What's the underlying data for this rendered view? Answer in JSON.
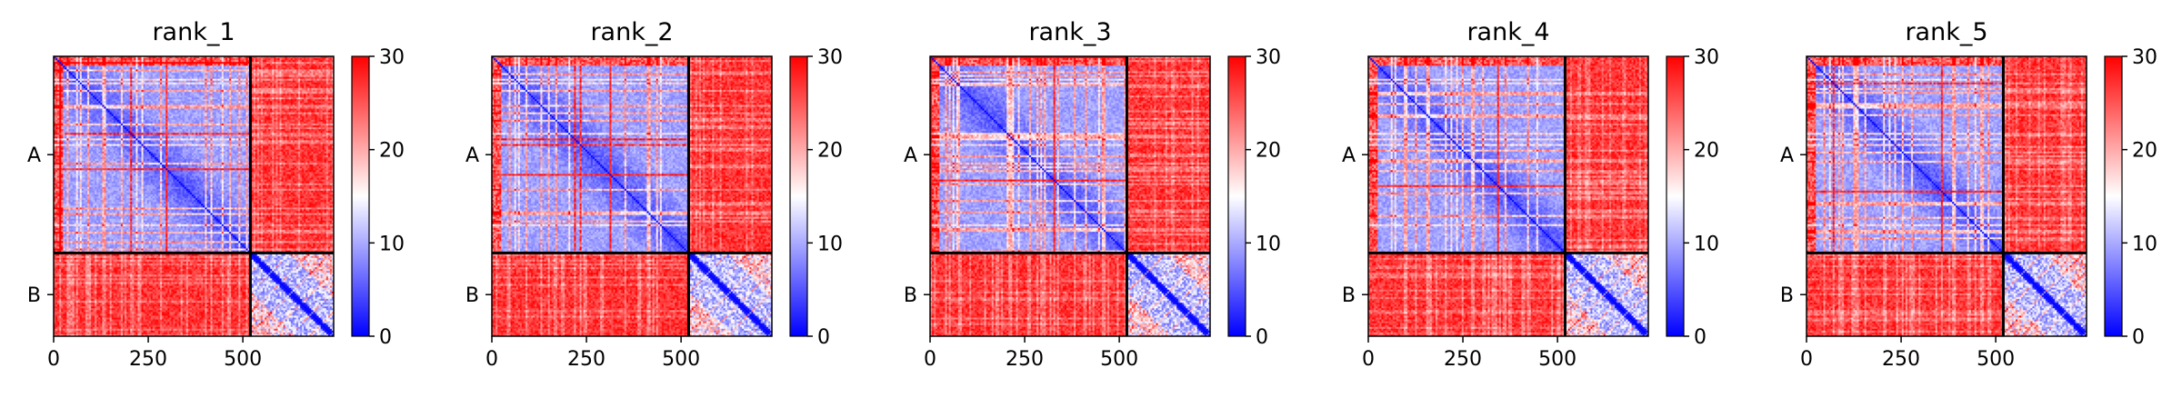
{
  "chart_data": {
    "type": "heatmap",
    "colormap": {
      "name": "bwr",
      "low": "#0000ff",
      "mid": "#ffffff",
      "high": "#ff0000"
    },
    "value_range": [
      0,
      30
    ],
    "colorbar_ticks": [
      "0",
      "10",
      "20",
      "30"
    ],
    "x_ticks": [
      "0",
      "250",
      "500"
    ],
    "x_tick_values": [
      0,
      250,
      500
    ],
    "x_range": [
      0,
      740
    ],
    "chains": [
      {
        "label": "A",
        "start": 0,
        "end": 520
      },
      {
        "label": "B",
        "start": 520,
        "end": 740
      }
    ],
    "panels": [
      {
        "title": "rank_1"
      },
      {
        "title": "rank_2"
      },
      {
        "title": "rank_3"
      },
      {
        "title": "rank_4"
      },
      {
        "title": "rank_5"
      }
    ]
  }
}
